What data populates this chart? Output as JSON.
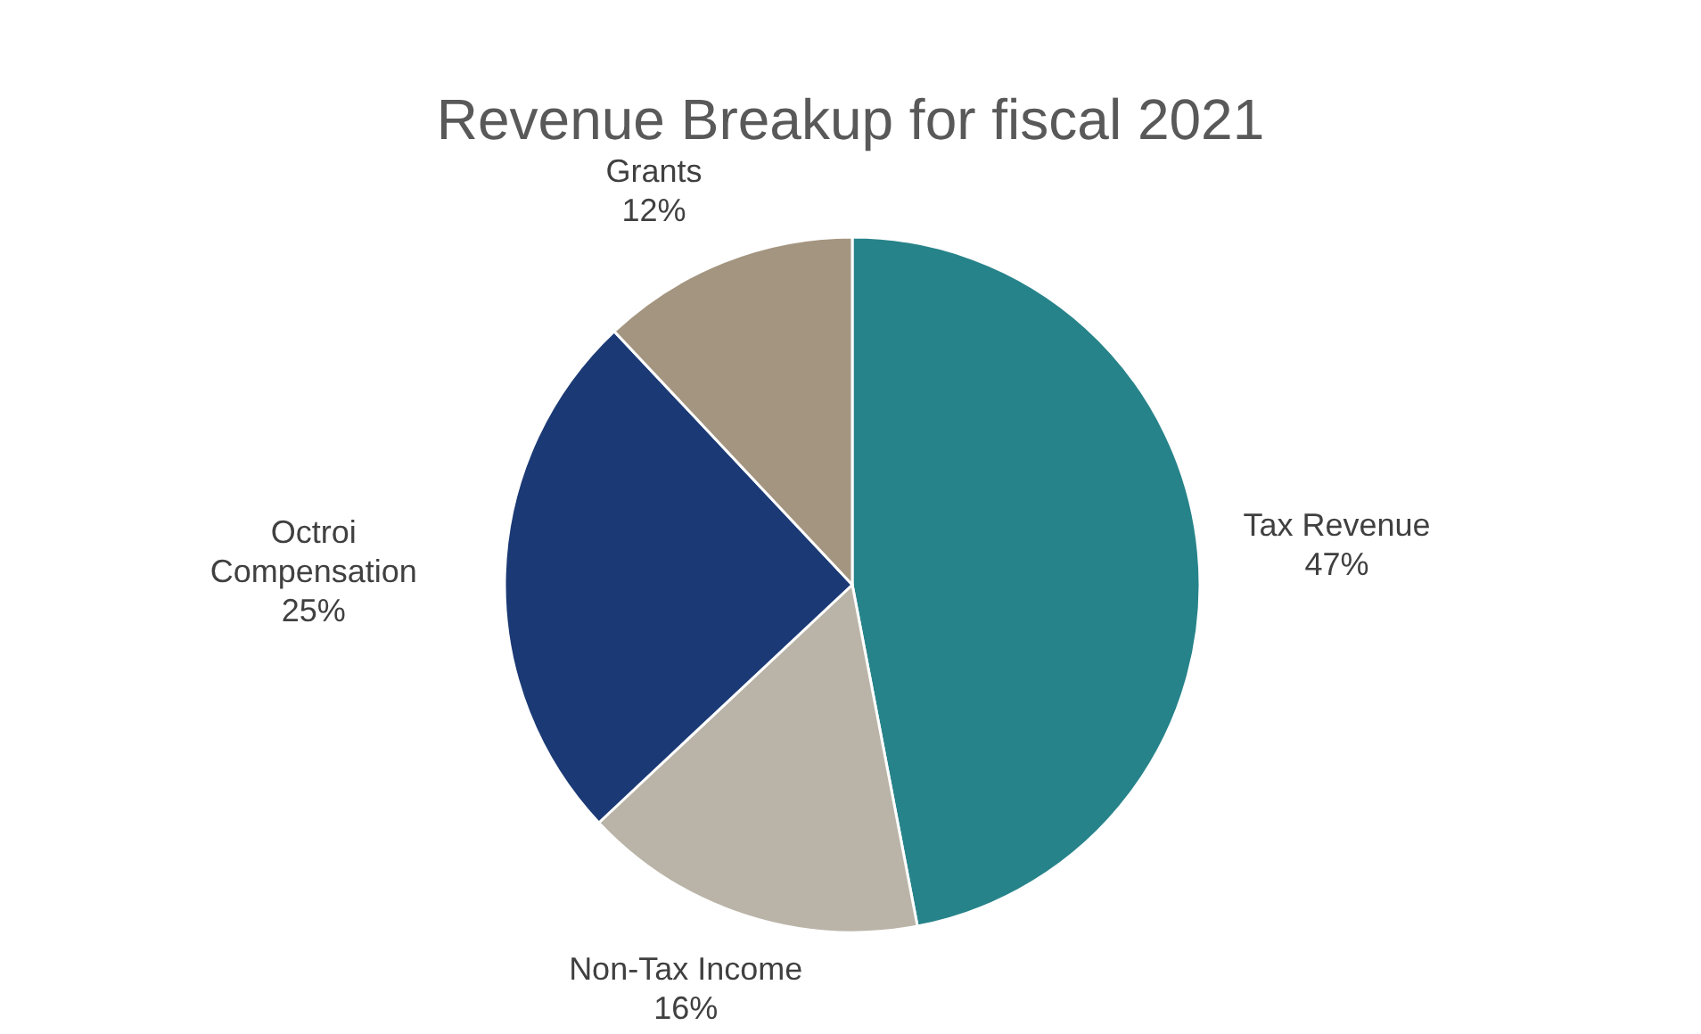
{
  "chart_data": {
    "type": "pie",
    "title": "Revenue Breakup for fiscal 2021",
    "categories": [
      "Tax Revenue",
      "Non-Tax Income",
      "Octroi Compensation",
      "Grants"
    ],
    "values": [
      47,
      16,
      25,
      12
    ],
    "colors": [
      "#27838a",
      "#bab4a8",
      "#1b3a75",
      "#a49580"
    ],
    "value_labels": [
      "47%",
      "16%",
      "25%",
      "12%"
    ],
    "legend": false
  }
}
